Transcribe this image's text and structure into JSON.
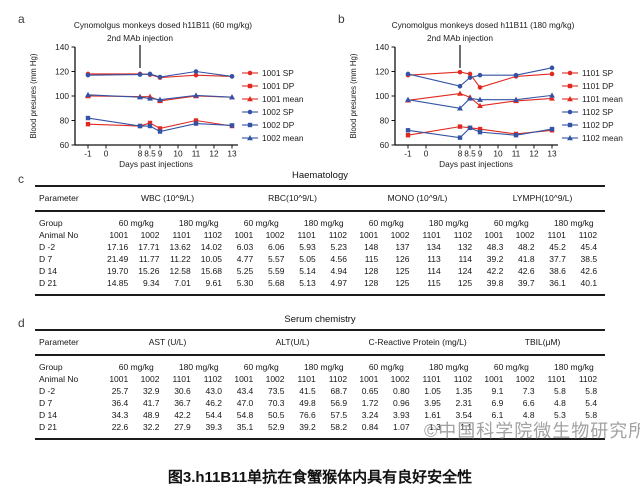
{
  "caption": "图3.h11B11单抗在食蟹猴体内具有良好安全性",
  "watermark": "©中国科学院微生物研究所",
  "chart_data": [
    {
      "type": "line",
      "panel_letter": "a",
      "title": "Cynomolgus monkeys dosed h11B11 (60 mg/kg)",
      "annotation": "2nd MAb injection",
      "annotation_day": "8",
      "ylabel": "Blood presures (mm Hg)",
      "xlabel": "Days past injections",
      "ylim": [
        60,
        140
      ],
      "yticks": [
        "140",
        "120",
        "100",
        "80",
        "60"
      ],
      "xticks": [
        "-1",
        "0",
        "8",
        "8.5",
        "9",
        "10",
        "11",
        "12",
        "13"
      ],
      "x_days": [
        "-1",
        "8",
        "8.5",
        "9",
        "11",
        "13"
      ],
      "legend_position": "right",
      "grid": false,
      "series": [
        {
          "name": "1001 SP",
          "color": "#e02a21",
          "marker": "circle",
          "values": [
            118,
            118,
            117.5,
            115,
            117,
            116
          ]
        },
        {
          "name": "1001 DP",
          "color": "#e02a21",
          "marker": "square",
          "values": [
            77,
            75.5,
            78,
            73.5,
            80,
            75.5
          ]
        },
        {
          "name": "1001 mean",
          "color": "#e02a21",
          "marker": "triangle",
          "values": [
            100,
            99.5,
            99.5,
            96,
            100,
            99
          ]
        },
        {
          "name": "1002 SP",
          "color": "#3353a4",
          "marker": "circle",
          "values": [
            117,
            117.5,
            118,
            115.5,
            120,
            116
          ]
        },
        {
          "name": "1002 DP",
          "color": "#3353a4",
          "marker": "square",
          "values": [
            82,
            75.5,
            75.5,
            71,
            77.5,
            76
          ]
        },
        {
          "name": "1002 mean",
          "color": "#3353a4",
          "marker": "triangle",
          "values": [
            101,
            99,
            98,
            97,
            100.5,
            99
          ]
        }
      ]
    },
    {
      "type": "line",
      "panel_letter": "b",
      "title": "Cynomolgus monkeys dosed h11B11 (180 mg/kg)",
      "annotation": "2nd MAb injection",
      "annotation_day": "8",
      "ylabel": "Blood presures (mm Hg)",
      "xlabel": "Days past injections",
      "ylim": [
        60,
        140
      ],
      "yticks": [
        "140",
        "120",
        "100",
        "80",
        "60"
      ],
      "xticks": [
        "-1",
        "0",
        "8",
        "8.5",
        "9",
        "10",
        "11",
        "12",
        "13"
      ],
      "x_days": [
        "-1",
        "8",
        "8.5",
        "9",
        "11",
        "13"
      ],
      "legend_position": "right",
      "grid": false,
      "series": [
        {
          "name": "1101 SP",
          "color": "#e02a21",
          "marker": "circle",
          "values": [
            117,
            119.5,
            118,
            107,
            116,
            118
          ]
        },
        {
          "name": "1101 DP",
          "color": "#e02a21",
          "marker": "square",
          "values": [
            68,
            75,
            74,
            73,
            69,
            72
          ]
        },
        {
          "name": "1101 mean",
          "color": "#e02a21",
          "marker": "triangle",
          "values": [
            96.5,
            102,
            99,
            92,
            96,
            98
          ]
        },
        {
          "name": "1102 SP",
          "color": "#3353a4",
          "marker": "circle",
          "values": [
            118,
            108,
            115,
            117,
            117,
            123
          ]
        },
        {
          "name": "1102 DP",
          "color": "#3353a4",
          "marker": "square",
          "values": [
            72,
            66,
            74,
            70.5,
            68,
            73
          ]
        },
        {
          "name": "1102 mean",
          "color": "#3353a4",
          "marker": "triangle",
          "values": [
            97,
            90,
            98,
            97,
            97,
            100.5
          ]
        }
      ]
    }
  ],
  "tables": [
    {
      "panel_letter": "c",
      "title": "Haematology",
      "param_header": "Parameter",
      "parameters": [
        "WBC (10^9/L)",
        "RBC(10^9/L)",
        "MONO (10^9/L)",
        "LYMPH(10^9/L)"
      ],
      "group_label": "Group",
      "groups": [
        "60 mg/kg",
        "180 mg/kg"
      ],
      "animal_label": "Animal No",
      "animals": [
        "1001",
        "1002",
        "1101",
        "1102"
      ],
      "row_labels": [
        "D -2",
        "D 7",
        "D 14",
        "D 21"
      ],
      "rows": [
        [
          "17.16",
          "17.71",
          "13.62",
          "14.02",
          "6.03",
          "6.06",
          "5.93",
          "5.23",
          "148",
          "137",
          "134",
          "132",
          "48.3",
          "48.2",
          "45.2",
          "45.4"
        ],
        [
          "21.49",
          "11.77",
          "11.22",
          "10.05",
          "4.77",
          "5.57",
          "5.05",
          "4.56",
          "115",
          "126",
          "113",
          "114",
          "39.2",
          "41.8",
          "37.7",
          "38.5"
        ],
        [
          "19.70",
          "15.26",
          "12.58",
          "15.68",
          "5.25",
          "5.59",
          "5.14",
          "4.94",
          "128",
          "125",
          "114",
          "124",
          "42.2",
          "42.6",
          "38.6",
          "42.6"
        ],
        [
          "14.85",
          "9.34",
          "7.01",
          "9.61",
          "5.30",
          "5.68",
          "5.13",
          "4.97",
          "128",
          "125",
          "115",
          "125",
          "39.8",
          "39.7",
          "36.1",
          "40.1"
        ]
      ]
    },
    {
      "panel_letter": "d",
      "title": "Serum chemistry",
      "param_header": "Parameter",
      "parameters": [
        "AST (U/L)",
        "ALT(U/L)",
        "C-Reactive Protein (mg/L)",
        "TBIL(μM)"
      ],
      "group_label": "Group",
      "groups": [
        "60 mg/kg",
        "180 mg/kg"
      ],
      "animal_label": "Animal No",
      "animals": [
        "1001",
        "1002",
        "1101",
        "1102"
      ],
      "row_labels": [
        "D -2",
        "D 7",
        "D 14",
        "D 21"
      ],
      "rows": [
        [
          "25.7",
          "32.9",
          "30.6",
          "43.0",
          "43.4",
          "73.5",
          "41.5",
          "68.7",
          "0.65",
          "0.80",
          "1.05",
          "1.35",
          "9.1",
          "7.3",
          "5.8",
          "5.8"
        ],
        [
          "36.4",
          "41.7",
          "36.7",
          "46.2",
          "47.0",
          "70.3",
          "49.8",
          "56.9",
          "1.72",
          "0.96",
          "3.95",
          "2.31",
          "6.9",
          "6.6",
          "4.8",
          "5.4"
        ],
        [
          "34.3",
          "48.9",
          "42.2",
          "54.4",
          "54.8",
          "50.5",
          "76.6",
          "57.5",
          "3.24",
          "3.93",
          "1.61",
          "3.54",
          "6.1",
          "4.8",
          "5.3",
          "5.8"
        ],
        [
          "22.6",
          "32.2",
          "27.9",
          "39.3",
          "35.1",
          "52.9",
          "39.2",
          "58.2",
          "0.84",
          "1.07",
          "1.3",
          "1.1",
          "",
          "",
          "",
          ""
        ]
      ]
    }
  ]
}
